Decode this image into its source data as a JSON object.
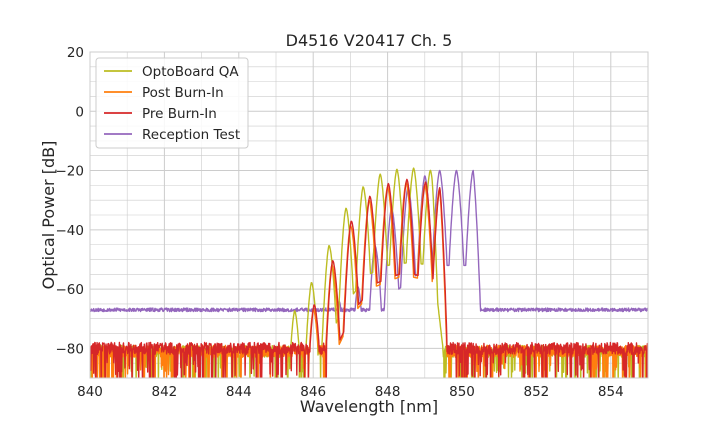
{
  "chart_data": {
    "type": "line",
    "title": "D4516 V20417 Ch. 5",
    "xlabel": "Wavelength [nm]",
    "ylabel": "Optical Power [dB]",
    "xlim": [
      840,
      855
    ],
    "ylim": [
      -90,
      20
    ],
    "xticks": [
      840,
      842,
      844,
      846,
      848,
      850,
      852,
      854
    ],
    "yticks": [
      20,
      0,
      -20,
      -40,
      -60,
      -80
    ],
    "ytick_labels": [
      "20",
      "0",
      "−20",
      "−40",
      "−60",
      "−80"
    ],
    "grid": true,
    "legend_position": "top-left",
    "series": [
      {
        "name": "OptoBoard QA",
        "color": "#bcbd22",
        "noise_floor": -81,
        "envelope": [
          [
            840,
            -81
          ],
          [
            845.3,
            -70
          ],
          [
            845.6,
            -66
          ],
          [
            846.2,
            -52
          ],
          [
            846.8,
            -34
          ],
          [
            847.5,
            -23
          ],
          [
            848.0,
            -20
          ],
          [
            848.6,
            -19
          ],
          [
            849.2,
            -20
          ],
          [
            849.35,
            -33
          ],
          [
            849.6,
            -60
          ],
          [
            849.8,
            -81
          ],
          [
            855,
            -81
          ]
        ],
        "peaks_nm": [
          845.5,
          845.95,
          846.42,
          846.88,
          847.34,
          847.8,
          848.25,
          848.7,
          849.15
        ]
      },
      {
        "name": "Post Burn-In",
        "color": "#ff7f0e",
        "noise_floor": -81,
        "envelope": [
          [
            840,
            -81
          ],
          [
            845.4,
            -80
          ],
          [
            846.0,
            -67
          ],
          [
            846.5,
            -52
          ],
          [
            847.1,
            -36
          ],
          [
            847.7,
            -27
          ],
          [
            848.3,
            -24
          ],
          [
            848.7,
            -24
          ],
          [
            849.4,
            -26
          ],
          [
            849.55,
            -45
          ],
          [
            849.8,
            -81
          ],
          [
            855,
            -81
          ]
        ],
        "peaks_nm": [
          846.0,
          846.5,
          847.0,
          847.5,
          848.0,
          848.5,
          849.0,
          849.4
        ]
      },
      {
        "name": "Pre Burn-In",
        "color": "#d62728",
        "noise_floor": -80,
        "envelope": [
          [
            840,
            -80
          ],
          [
            845.4,
            -79
          ],
          [
            846.0,
            -66
          ],
          [
            846.5,
            -51
          ],
          [
            847.1,
            -35
          ],
          [
            847.7,
            -26
          ],
          [
            848.3,
            -23
          ],
          [
            848.7,
            -23
          ],
          [
            849.4,
            -25
          ],
          [
            849.55,
            -45
          ],
          [
            849.8,
            -80
          ],
          [
            855,
            -80
          ]
        ],
        "peaks_nm": [
          846.02,
          846.52,
          847.02,
          847.52,
          848.02,
          848.52,
          849.02,
          849.42
        ]
      },
      {
        "name": "Reception Test",
        "color": "#9467bd",
        "noise_floor": -67,
        "envelope": [
          [
            840,
            -67
          ],
          [
            845.0,
            -66.5
          ],
          [
            846.0,
            -65
          ],
          [
            846.8,
            -64
          ],
          [
            847.3,
            -58
          ],
          [
            847.8,
            -40
          ],
          [
            848.3,
            -28
          ],
          [
            848.8,
            -23
          ],
          [
            849.3,
            -20
          ],
          [
            849.9,
            -20
          ],
          [
            850.3,
            -20
          ],
          [
            850.55,
            -40
          ],
          [
            850.7,
            -66
          ],
          [
            852,
            -67.5
          ],
          [
            855,
            -68.5
          ]
        ],
        "peaks_nm": [
          846.7,
          847.2,
          847.65,
          848.1,
          848.55,
          849.0,
          849.4,
          849.85,
          850.3
        ]
      }
    ]
  }
}
